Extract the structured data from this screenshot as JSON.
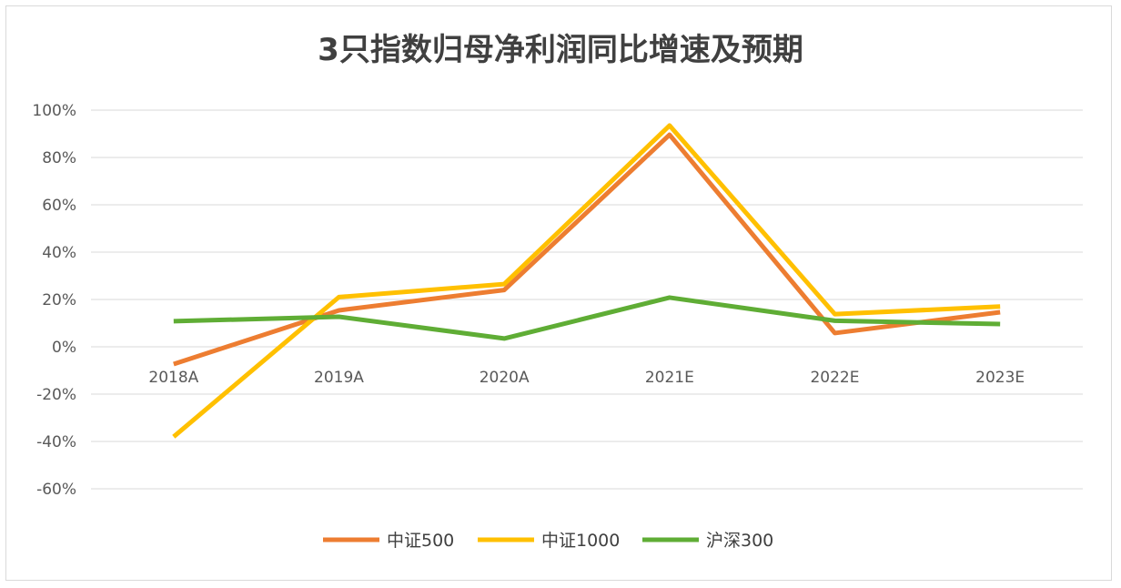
{
  "chart_data": {
    "type": "line",
    "title": "3只指数归母净利润同比增速及预期",
    "xlabel": "",
    "ylabel": "",
    "categories": [
      "2018A",
      "2019A",
      "2020A",
      "2021E",
      "2022E",
      "2023E"
    ],
    "ylim": [
      -60,
      100
    ],
    "yticks": [
      100,
      80,
      60,
      40,
      20,
      0,
      -20,
      -40,
      -60
    ],
    "ytick_labels": [
      "100%",
      "80%",
      "60%",
      "40%",
      "20%",
      "0%",
      "-20%",
      "-40%",
      "-60%"
    ],
    "grid": true,
    "legend_position": "bottom",
    "series": [
      {
        "name": "中证500",
        "color": "#ED7D31",
        "values": [
          -7.3,
          15.4,
          24.0,
          89.6,
          5.8,
          14.6
        ]
      },
      {
        "name": "中证1000",
        "color": "#FFC000",
        "values": [
          -38.0,
          21.0,
          26.5,
          93.5,
          13.8,
          17.0
        ]
      },
      {
        "name": "沪深300",
        "color": "#5FAD35",
        "values": [
          10.8,
          12.7,
          3.5,
          20.8,
          11.0,
          9.6
        ]
      }
    ]
  }
}
